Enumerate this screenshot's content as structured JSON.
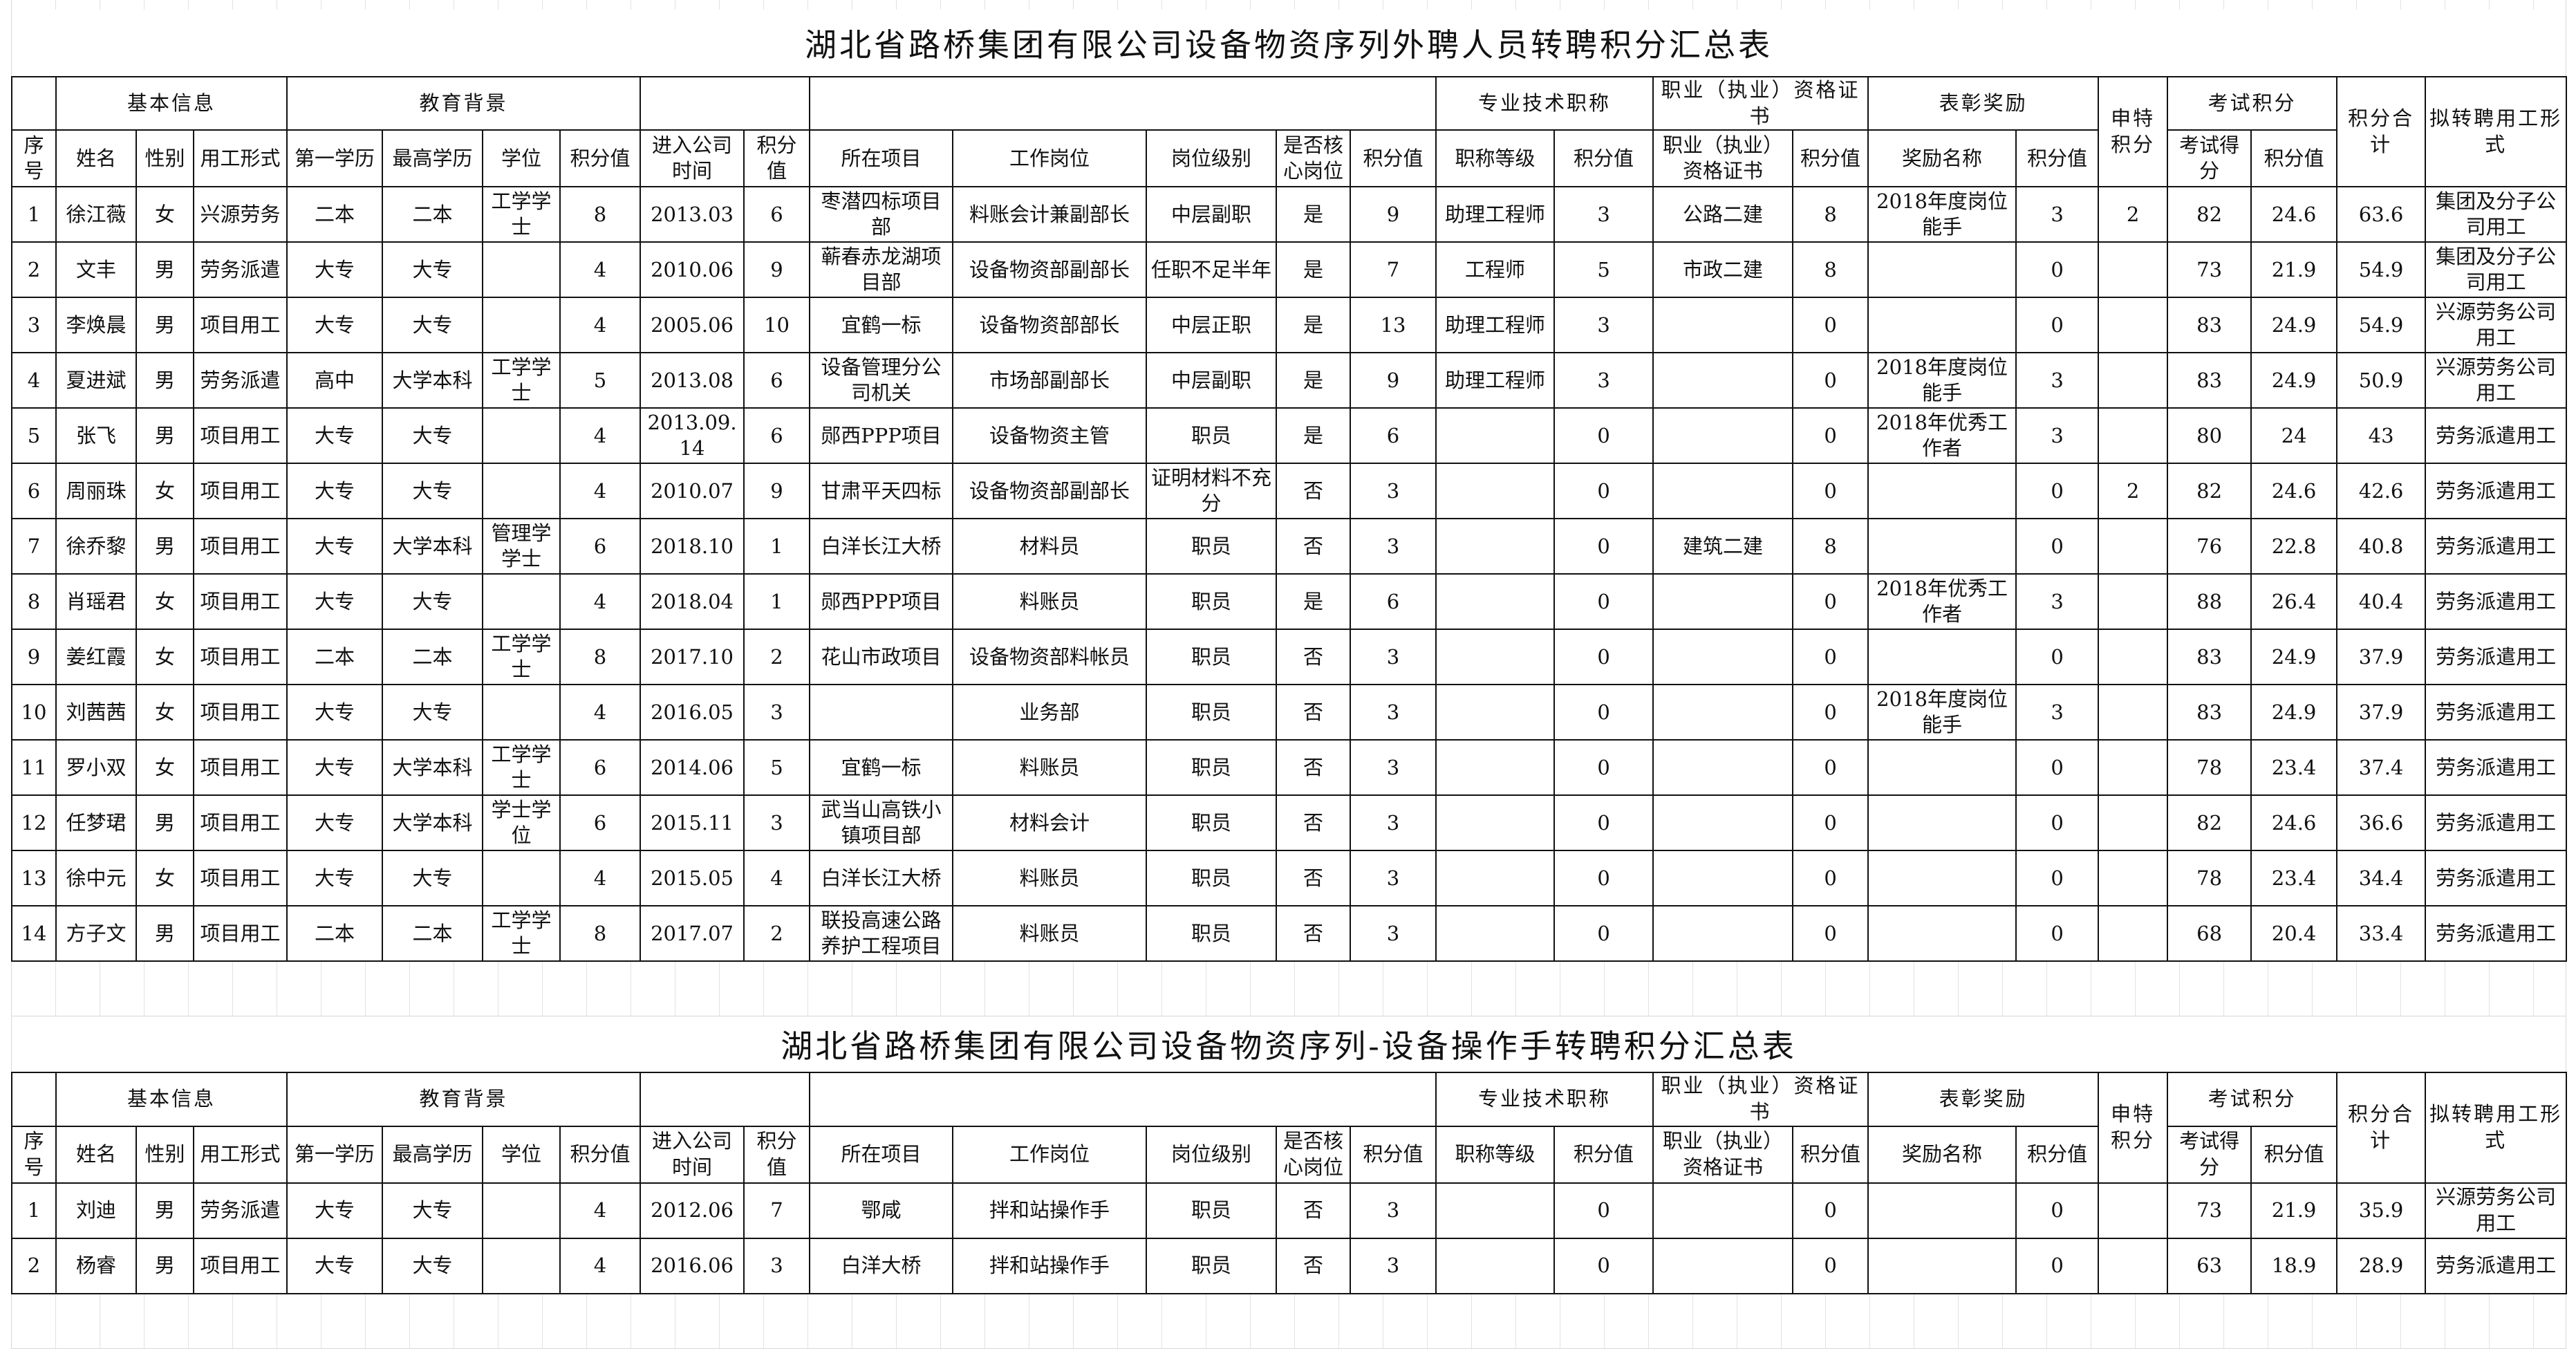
{
  "table1": {
    "title": "湖北省路桥集团有限公司设备物资序列外聘人员转聘积分汇总表",
    "groups": [
      "",
      "基本信息",
      "教育背景",
      "",
      "",
      "专业技术职称",
      "职业（执业）资格证书",
      "表彰奖励",
      "申特积分",
      "考试积分",
      "积分合计",
      "拟转聘用工形式"
    ],
    "rows": [
      [
        "1",
        "徐江薇",
        "女",
        "兴源劳务",
        "二本",
        "二本",
        "工学学士",
        "8",
        "2013.03",
        "6",
        "枣潜四标项目部",
        "料账会计兼副部长",
        "中层副职",
        "是",
        "9",
        "助理工程师",
        "3",
        "公路二建",
        "8",
        "2018年度岗位能手",
        "3",
        "2",
        "82",
        "24.6",
        "63.6",
        "集团及分子公司用工"
      ],
      [
        "2",
        "文丰",
        "男",
        "劳务派遣",
        "大专",
        "大专",
        "",
        "4",
        "2010.06",
        "9",
        "蕲春赤龙湖项目部",
        "设备物资部副部长",
        "任职不足半年",
        "是",
        "7",
        "工程师",
        "5",
        "市政二建",
        "8",
        "",
        "0",
        "",
        "73",
        "21.9",
        "54.9",
        "集团及分子公司用工"
      ],
      [
        "3",
        "李焕晨",
        "男",
        "项目用工",
        "大专",
        "大专",
        "",
        "4",
        "2005.06",
        "10",
        "宜鹤一标",
        "设备物资部部长",
        "中层正职",
        "是",
        "13",
        "助理工程师",
        "3",
        "",
        "0",
        "",
        "0",
        "",
        "83",
        "24.9",
        "54.9",
        "兴源劳务公司用工"
      ],
      [
        "4",
        "夏进斌",
        "男",
        "劳务派遣",
        "高中",
        "大学本科",
        "工学学士",
        "5",
        "2013.08",
        "6",
        "设备管理分公司机关",
        "市场部副部长",
        "中层副职",
        "是",
        "9",
        "助理工程师",
        "3",
        "",
        "0",
        "2018年度岗位能手",
        "3",
        "",
        "83",
        "24.9",
        "50.9",
        "兴源劳务公司用工"
      ],
      [
        "5",
        "张飞",
        "男",
        "项目用工",
        "大专",
        "大专",
        "",
        "4",
        "2013.09.14",
        "6",
        "郧西PPP项目",
        "设备物资主管",
        "职员",
        "是",
        "6",
        "",
        "0",
        "",
        "0",
        "2018年优秀工作者",
        "3",
        "",
        "80",
        "24",
        "43",
        "劳务派遣用工"
      ],
      [
        "6",
        "周丽珠",
        "女",
        "项目用工",
        "大专",
        "大专",
        "",
        "4",
        "2010.07",
        "9",
        "甘肃平天四标",
        "设备物资部副部长",
        "证明材料不充分",
        "否",
        "3",
        "",
        "0",
        "",
        "0",
        "",
        "0",
        "2",
        "82",
        "24.6",
        "42.6",
        "劳务派遣用工"
      ],
      [
        "7",
        "徐乔黎",
        "男",
        "项目用工",
        "大专",
        "大学本科",
        "管理学学士",
        "6",
        "2018.10",
        "1",
        "白洋长江大桥",
        "材料员",
        "职员",
        "否",
        "3",
        "",
        "0",
        "建筑二建",
        "8",
        "",
        "0",
        "",
        "76",
        "22.8",
        "40.8",
        "劳务派遣用工"
      ],
      [
        "8",
        "肖瑶君",
        "女",
        "项目用工",
        "大专",
        "大专",
        "",
        "4",
        "2018.04",
        "1",
        "郧西PPP项目",
        "料账员",
        "职员",
        "是",
        "6",
        "",
        "0",
        "",
        "0",
        "2018年优秀工作者",
        "3",
        "",
        "88",
        "26.4",
        "40.4",
        "劳务派遣用工"
      ],
      [
        "9",
        "姜红霞",
        "女",
        "项目用工",
        "二本",
        "二本",
        "工学学士",
        "8",
        "2017.10",
        "2",
        "花山市政项目",
        "设备物资部料帐员",
        "职员",
        "否",
        "3",
        "",
        "0",
        "",
        "0",
        "",
        "0",
        "",
        "83",
        "24.9",
        "37.9",
        "劳务派遣用工"
      ],
      [
        "10",
        "刘茜茜",
        "女",
        "项目用工",
        "大专",
        "大专",
        "",
        "4",
        "2016.05",
        "3",
        "",
        "业务部",
        "职员",
        "否",
        "3",
        "",
        "0",
        "",
        "0",
        "2018年度岗位能手",
        "3",
        "",
        "83",
        "24.9",
        "37.9",
        "劳务派遣用工"
      ],
      [
        "11",
        "罗小双",
        "女",
        "项目用工",
        "大专",
        "大学本科",
        "工学学士",
        "6",
        "2014.06",
        "5",
        "宜鹤一标",
        "料账员",
        "职员",
        "否",
        "3",
        "",
        "0",
        "",
        "0",
        "",
        "0",
        "",
        "78",
        "23.4",
        "37.4",
        "劳务派遣用工"
      ],
      [
        "12",
        "任梦珺",
        "男",
        "项目用工",
        "大专",
        "大学本科",
        "学士学位",
        "6",
        "2015.11",
        "3",
        "武当山高铁小镇项目部",
        "材料会计",
        "职员",
        "否",
        "3",
        "",
        "0",
        "",
        "0",
        "",
        "0",
        "",
        "82",
        "24.6",
        "36.6",
        "劳务派遣用工"
      ],
      [
        "13",
        "徐中元",
        "女",
        "项目用工",
        "大专",
        "大专",
        "",
        "4",
        "2015.05",
        "4",
        "白洋长江大桥",
        "料账员",
        "职员",
        "否",
        "3",
        "",
        "0",
        "",
        "0",
        "",
        "0",
        "",
        "78",
        "23.4",
        "34.4",
        "劳务派遣用工"
      ],
      [
        "14",
        "方子文",
        "男",
        "项目用工",
        "二本",
        "二本",
        "工学学士",
        "8",
        "2017.07",
        "2",
        "联投高速公路养护工程项目",
        "料账员",
        "职员",
        "否",
        "3",
        "",
        "0",
        "",
        "0",
        "",
        "0",
        "",
        "68",
        "20.4",
        "33.4",
        "劳务派遣用工"
      ]
    ]
  },
  "table2": {
    "title": "湖北省路桥集团有限公司设备物资序列-设备操作手转聘积分汇总表",
    "groups": [
      "",
      "基本信息",
      "教育背景",
      "",
      "",
      "专业技术职称",
      "职业（执业）资格证书",
      "表彰奖励",
      "申特积分",
      "考试积分",
      "积分合计",
      "拟转聘用工形式"
    ],
    "rows": [
      [
        "1",
        "刘迪",
        "男",
        "劳务派遣",
        "大专",
        "大专",
        "",
        "4",
        "2012.06",
        "7",
        "鄂咸",
        "拌和站操作手",
        "职员",
        "否",
        "3",
        "",
        "0",
        "",
        "0",
        "",
        "0",
        "",
        "73",
        "21.9",
        "35.9",
        "兴源劳务公司用工"
      ],
      [
        "2",
        "杨睿",
        "男",
        "项目用工",
        "大专",
        "大专",
        "",
        "4",
        "2016.06",
        "3",
        "白洋大桥",
        "拌和站操作手",
        "职员",
        "否",
        "3",
        "",
        "0",
        "",
        "0",
        "",
        "0",
        "",
        "63",
        "18.9",
        "28.9",
        "劳务派遣用工"
      ]
    ]
  },
  "columns": [
    "序号",
    "姓名",
    "性别",
    "用工形式",
    "第一学历",
    "最高学历",
    "学位",
    "积分值",
    "进入公司时间",
    "积分值",
    "所在项目",
    "工作岗位",
    "岗位级别",
    "是否核心岗位",
    "积分值",
    "职称等级",
    "积分值",
    "职业（执业）资格证书",
    "积分值",
    "奖励名称",
    "积分值",
    "",
    "考试得分",
    "积分值",
    "",
    ""
  ],
  "colors": {
    "border": "#111111",
    "grid": "#d8d8d8",
    "comment_marker": "#1a8a1a"
  }
}
